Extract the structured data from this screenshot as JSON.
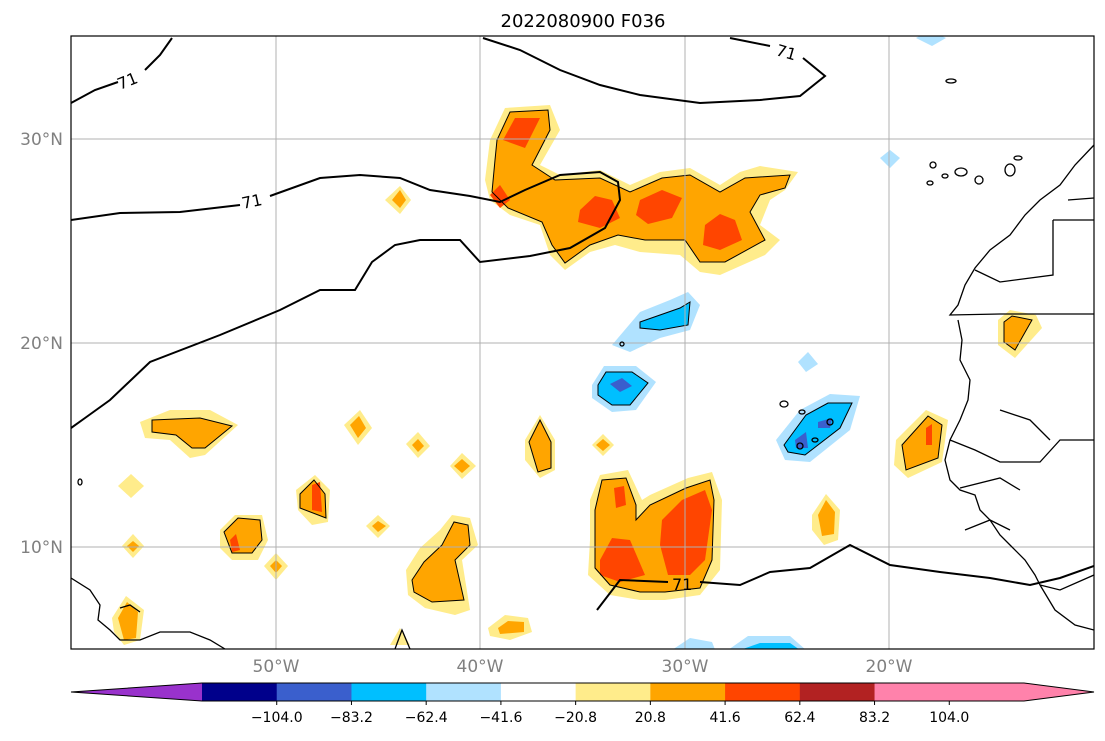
{
  "title": "2022080900 F036",
  "map": {
    "lat_labels": [
      "30°N",
      "20°N",
      "10°N"
    ],
    "lon_labels": [
      "50°W",
      "40°W",
      "30°W",
      "20°W"
    ],
    "contour_label": "71"
  },
  "colorbar": {
    "ticks": [
      "−104.0",
      "−83.2",
      "−62.4",
      "−41.6",
      "−20.8",
      "20.8",
      "41.6",
      "62.4",
      "83.2",
      "104.0"
    ],
    "colors": [
      "#9932cc",
      "#00008b",
      "#3a5fcd",
      "#00bfff",
      "#b0e2ff",
      "#ffffff",
      "#ffec8b",
      "#ffa500",
      "#ff4500",
      "#b22222",
      "#ff82ab",
      "#ff82ab"
    ]
  },
  "colors": {
    "pale_yellow": "#ffec8b",
    "orange": "#ffa500",
    "red_orange": "#ff4500",
    "light_blue": "#b0e2ff",
    "deep_sky_blue": "#00bfff",
    "royal_blue": "#3a5fcd",
    "grid": "#b0b0b0",
    "coast": "#000000"
  }
}
